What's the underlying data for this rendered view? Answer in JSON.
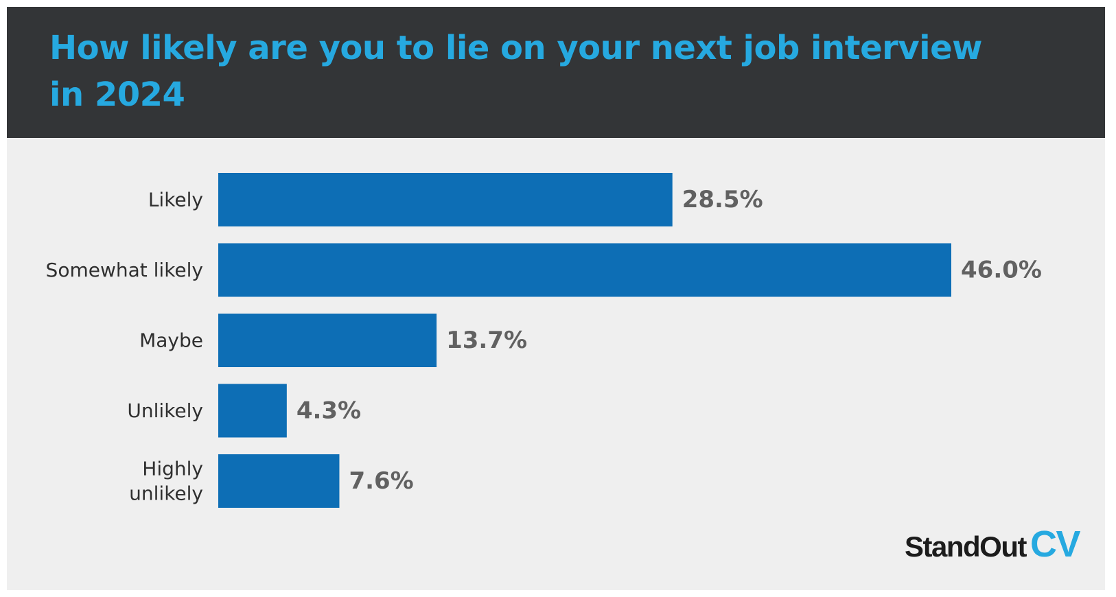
{
  "chart_data": {
    "type": "bar",
    "orientation": "horizontal",
    "title": "How likely are you to lie on your next job interview in 2024",
    "categories": [
      "Likely",
      "Somewhat likely",
      "Maybe",
      "Unlikely",
      "Highly unlikely"
    ],
    "category_lines": [
      [
        "Likely"
      ],
      [
        "Somewhat likely"
      ],
      [
        "Maybe"
      ],
      [
        "Unlikely"
      ],
      [
        "Highly",
        "unlikely"
      ]
    ],
    "values": [
      28.5,
      46.0,
      13.7,
      4.3,
      7.6
    ],
    "value_labels": [
      "28.5%",
      "46.0%",
      "13.7%",
      "4.3%",
      "7.6%"
    ],
    "unit": "%",
    "xlim": [
      0,
      46
    ],
    "grid": false,
    "legend": "none",
    "bar_color": "#0d6eb5",
    "title_color": "#26a9e0",
    "header_color": "#333537",
    "background_color": "#efefef"
  },
  "brand": {
    "name": "StandOut",
    "accent": "CV"
  }
}
